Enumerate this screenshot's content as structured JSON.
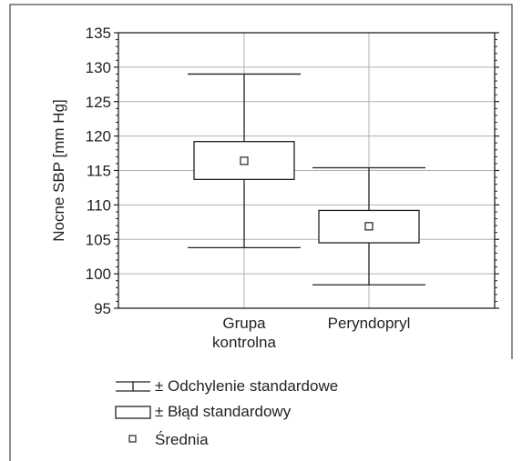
{
  "chart_data": {
    "type": "box",
    "ylabel": "Nocne SBP [mm Hg]",
    "xlabel": "",
    "ylim": [
      95,
      135
    ],
    "yticks": [
      95,
      100,
      105,
      110,
      115,
      120,
      125,
      130,
      135
    ],
    "grid": true,
    "categories": [
      {
        "lines": [
          "Grupa",
          "kontrolna"
        ]
      },
      {
        "lines": [
          "Peryndopryl"
        ]
      }
    ],
    "groups": [
      {
        "mean": 116.4,
        "se_low": 113.7,
        "se_high": 119.2,
        "sd_low": 103.8,
        "sd_high": 129.0
      },
      {
        "mean": 106.9,
        "se_low": 104.5,
        "se_high": 109.2,
        "sd_low": 98.4,
        "sd_high": 115.4
      }
    ],
    "legend": {
      "position": "bottom-left",
      "items": [
        {
          "symbol": "whisker",
          "label": "± Odchylenie standardowe"
        },
        {
          "symbol": "box",
          "label": "± Błąd standardowy"
        },
        {
          "symbol": "mean",
          "label": "Średnia"
        }
      ]
    },
    "colors": {
      "ink": "#231f20",
      "grid": "#b0b0b0"
    }
  }
}
